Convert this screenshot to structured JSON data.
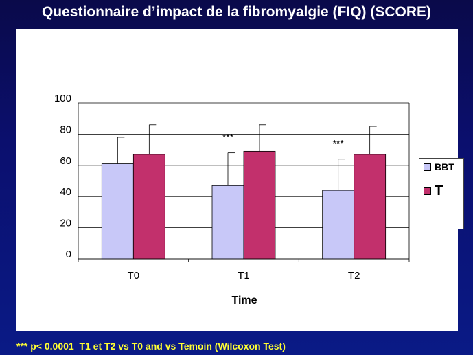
{
  "slide": {
    "title": "Questionnaire d’impact de la fibromyalgie (FIQ) (SCORE)",
    "footnote": "*** p< 0.0001  T1 et T2 vs T0 and vs Temoin (Wilcoxon Test)"
  },
  "colors": {
    "background": "#0b0f6e",
    "title_text": "#ffffff",
    "footnote_text": "#ffff33",
    "bbt": "#c8c8f8",
    "t": "#c2306c"
  },
  "chart_data": {
    "type": "bar",
    "title": "",
    "xlabel": "Time",
    "ylabel": "",
    "ylim": [
      0,
      100
    ],
    "yticks": [
      "100",
      "80",
      "60",
      "40",
      "20",
      "0"
    ],
    "grid": true,
    "legend_position": "right",
    "categories": [
      "T0",
      "T1",
      "T2"
    ],
    "series": [
      {
        "name": "BBT",
        "color": "#c8c8f8",
        "values": [
          61,
          47,
          44
        ],
        "error": [
          17,
          21,
          20
        ]
      },
      {
        "name": "T",
        "color": "#c2306c",
        "values": [
          67,
          69,
          67
        ],
        "error": [
          19,
          17,
          18
        ]
      }
    ],
    "annotations": [
      {
        "category": "T0",
        "text": ""
      },
      {
        "category": "T1",
        "text": "***"
      },
      {
        "category": "T2",
        "text": "***"
      }
    ]
  }
}
